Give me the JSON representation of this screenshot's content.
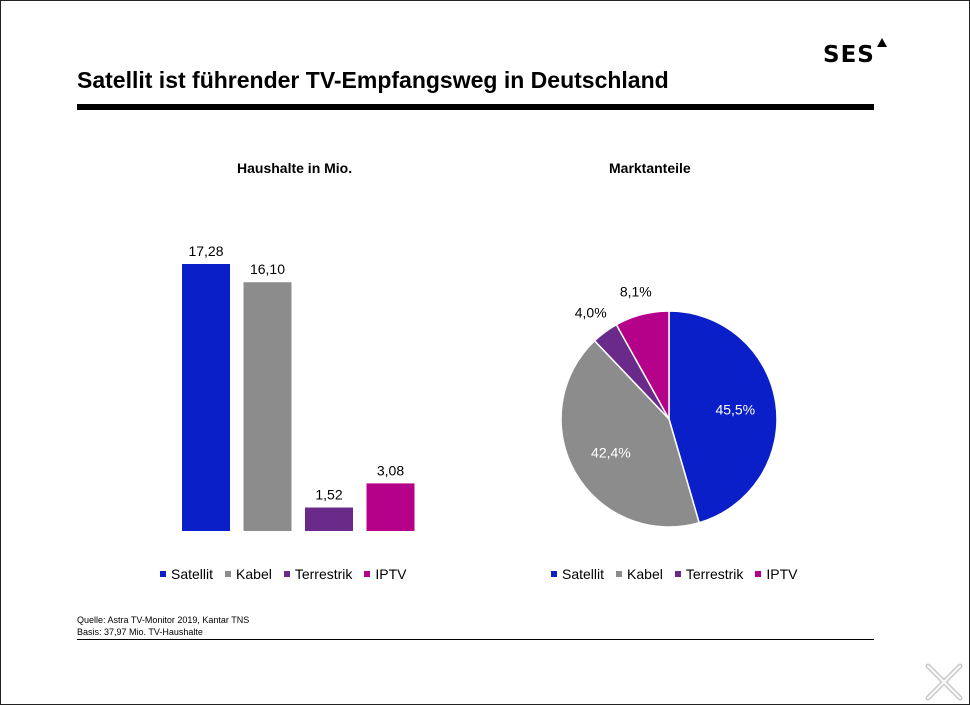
{
  "page": {
    "title": "Satellit ist führender TV-Empfangsweg in Deutschland",
    "logo": "SES",
    "source_line1": "Quelle: Astra TV-Monitor 2019, Kantar TNS",
    "source_line2": "Basis: 37,97 Mio. TV-Haushalte"
  },
  "colors": {
    "Satellit": "#0a1fc8",
    "Kabel": "#8c8c8c",
    "Terrestrik": "#6a2a8a",
    "IPTV": "#b5008a"
  },
  "chart_data": [
    {
      "type": "bar",
      "title": "Haushalte in Mio.",
      "categories": [
        "Satellit",
        "Kabel",
        "Terrestrik",
        "IPTV"
      ],
      "values": [
        17.28,
        16.1,
        1.52,
        3.08
      ],
      "data_labels": [
        "17,28",
        "16,10",
        "1,52",
        "3,08"
      ],
      "legend": [
        "Satellit",
        "Kabel",
        "Terrestrik",
        "IPTV"
      ],
      "legend_position": "bottom",
      "grid": false,
      "ylim": [
        0,
        17.28
      ]
    },
    {
      "type": "pie",
      "title": "Marktanteile",
      "categories": [
        "Satellit",
        "Kabel",
        "Terrestrik",
        "IPTV"
      ],
      "values": [
        45.5,
        42.4,
        4.0,
        8.1
      ],
      "data_labels": [
        "45,5%",
        "42,4%",
        "4,0%",
        "8,1%"
      ],
      "legend": [
        "Satellit",
        "Kabel",
        "Terrestrik",
        "IPTV"
      ],
      "legend_position": "bottom"
    }
  ],
  "close_icon": "close-icon"
}
